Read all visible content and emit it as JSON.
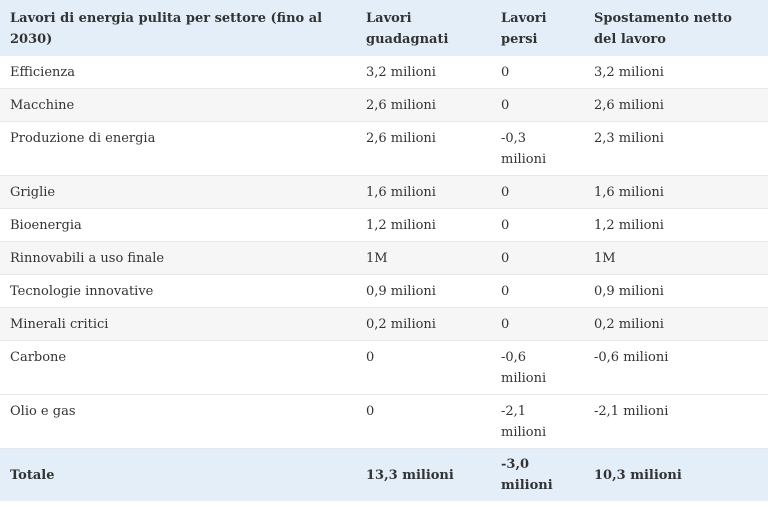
{
  "table": {
    "headers": [
      "Lavori di energia pulita per settore (fino al 2030)",
      "Lavori guadagnati",
      "Lavori persi",
      "Spostamento netto del lavoro"
    ],
    "rows": [
      [
        "Efficienza",
        "3,2 milioni",
        "0",
        "3,2 milioni"
      ],
      [
        "Macchine",
        "2,6 milioni",
        "0",
        "2,6 milioni"
      ],
      [
        "Produzione di energia",
        "2,6 milioni",
        "-0,3 milioni",
        "2,3 milioni"
      ],
      [
        "Griglie",
        "1,6 milioni",
        "0",
        "1,6 milioni"
      ],
      [
        "Bioenergia",
        "1,2 milioni",
        "0",
        "1,2 milioni"
      ],
      [
        "Rinnovabili a uso finale",
        "1M",
        "0",
        "1M"
      ],
      [
        "Tecnologie innovative",
        "0,9 milioni",
        "0",
        "0,9 milioni"
      ],
      [
        "Minerali critici",
        "0,2 milioni",
        "0",
        "0,2 milioni"
      ],
      [
        "Carbone",
        "0",
        "-0,6 milioni",
        "-0,6 milioni"
      ],
      [
        "Olio e gas",
        "0",
        "-2,1 milioni",
        "-2,1 milioni"
      ]
    ],
    "total": [
      "Totale",
      "13,3 milioni",
      "-3,0 milioni",
      "10,3 milioni"
    ]
  }
}
